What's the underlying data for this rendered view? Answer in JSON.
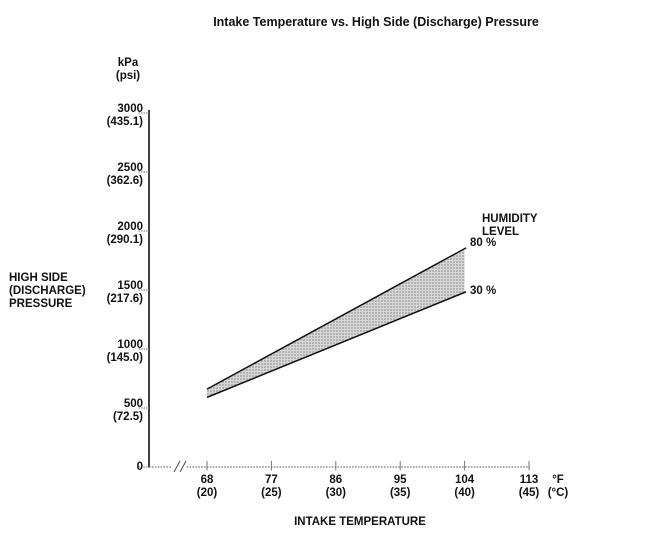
{
  "title": "Intake Temperature vs. High Side (Discharge) Pressure",
  "y_axis": {
    "unit_primary": "kPa",
    "unit_secondary": "(psi)",
    "axis_label_lines": [
      "HIGH SIDE",
      "(DISCHARGE)",
      "PRESSURE"
    ],
    "ticks": [
      {
        "kpa": "3000",
        "psi": "(435.1)"
      },
      {
        "kpa": "2500",
        "psi": "(362.6)"
      },
      {
        "kpa": "2000",
        "psi": "(290.1)"
      },
      {
        "kpa": "1500",
        "psi": "(217.6)"
      },
      {
        "kpa": "1000",
        "psi": "(145.0)"
      },
      {
        "kpa": "500",
        "psi": "(72.5)"
      },
      {
        "kpa": "0",
        "psi": ""
      }
    ]
  },
  "x_axis": {
    "label": "INTAKE TEMPERATURE",
    "unit_primary": "°F",
    "unit_secondary": "(°C)",
    "ticks": [
      {
        "f": "68",
        "c": "(20)"
      },
      {
        "f": "77",
        "c": "(25)"
      },
      {
        "f": "86",
        "c": "(30)"
      },
      {
        "f": "95",
        "c": "(35)"
      },
      {
        "f": "104",
        "c": "(40)"
      },
      {
        "f": "113",
        "c": "(45)"
      }
    ]
  },
  "legend": {
    "title_lines": [
      "HUMIDITY",
      "LEVEL"
    ],
    "upper_label": "80 %",
    "lower_label": "30 %"
  },
  "chart_data": {
    "type": "area",
    "title": "Intake Temperature vs. High Side (Discharge) Pressure",
    "xlabel": "INTAKE TEMPERATURE",
    "ylabel": "HIGH SIDE (DISCHARGE) PRESSURE",
    "x_unit": "°F (°C)",
    "y_unit": "kPa (psi)",
    "xlim_f": [
      68,
      113
    ],
    "ylim_kpa": [
      0,
      3000
    ],
    "x_ticks_f": [
      68,
      77,
      86,
      95,
      104,
      113
    ],
    "x_ticks_c": [
      20,
      25,
      30,
      35,
      40,
      45
    ],
    "y_ticks_kpa": [
      0,
      500,
      1000,
      1500,
      2000,
      2500,
      3000
    ],
    "y_ticks_psi": [
      0,
      72.5,
      145.0,
      217.6,
      290.1,
      362.6,
      435.1
    ],
    "grid": false,
    "legend_position": "right of band ends",
    "band_note": "shaded region between 30 % and 80 % humidity lines",
    "series": [
      {
        "name": "80 % humidity",
        "x_f": [
          68,
          104
        ],
        "y_kpa": [
          660,
          1850
        ]
      },
      {
        "name": "30 % humidity",
        "x_f": [
          68,
          104
        ],
        "y_kpa": [
          590,
          1480
        ]
      }
    ],
    "colors": {
      "band_fill": "#c9c9c9",
      "line": "#111111",
      "axis_dotted": "#666666",
      "text": "#111111",
      "background": "#ffffff"
    }
  }
}
